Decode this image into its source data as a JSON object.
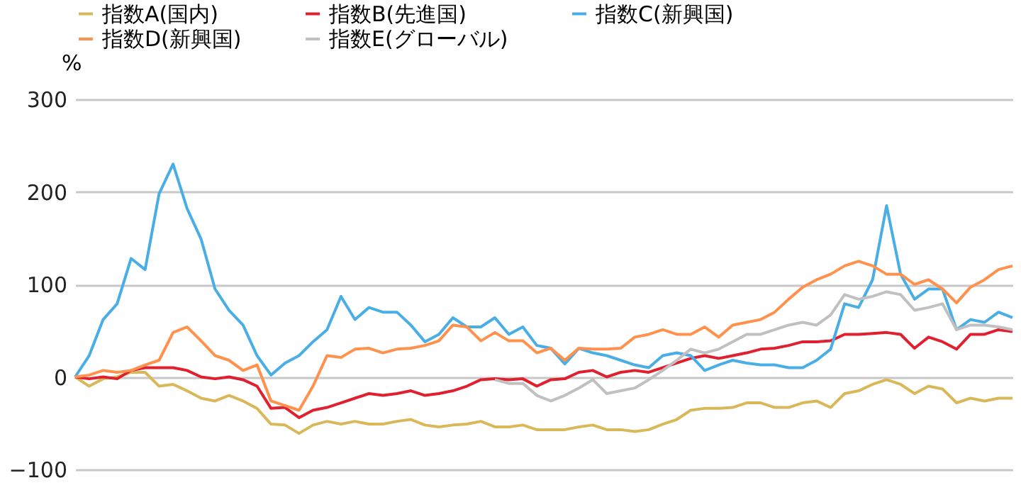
{
  "chart_data": {
    "type": "line",
    "ylabel": "%",
    "categories": [
      null,
      null,
      null,
      null,
      null,
      null,
      null,
      null,
      null,
      null,
      null,
      null,
      null,
      null,
      null,
      null,
      null,
      null,
      null,
      null,
      null,
      null,
      null,
      null,
      null,
      null,
      null,
      null,
      null,
      null,
      null,
      null,
      null,
      null,
      null,
      null,
      null,
      null,
      null,
      null,
      null,
      null,
      null,
      null,
      null,
      null,
      null,
      null,
      null,
      null,
      null,
      null,
      null,
      null,
      null,
      null,
      null,
      null,
      null,
      null,
      null,
      null,
      null,
      null,
      null,
      null,
      null,
      null
    ],
    "ylim": [
      -100,
      300
    ],
    "yticks": [
      -100,
      0,
      100,
      200,
      300
    ],
    "grid": "y",
    "legend": "top",
    "tick_labels": "y",
    "line_style": "solid",
    "series": [
      {
        "name": "指数A(国内)",
        "color": "#d9b85a",
        "values": [
          0,
          -10,
          -2,
          0,
          5,
          5,
          -10,
          -8,
          -15,
          -23,
          -26,
          -20,
          -26,
          -34,
          -51,
          -52,
          -61,
          -52,
          -48,
          -51,
          -48,
          -51,
          -51,
          -48,
          -46,
          -52,
          -54,
          -52,
          -51,
          -48,
          -54,
          -54,
          -52,
          -57,
          -57,
          -57,
          -54,
          -52,
          -57,
          -57,
          -59,
          -57,
          -51,
          -46,
          -36,
          -34,
          -34,
          -33,
          -28,
          -28,
          -33,
          -33,
          -28,
          -26,
          -33,
          -18,
          -15,
          -8,
          -3,
          -8,
          -18,
          -10,
          -13,
          -28,
          -23,
          -26,
          -23,
          -23
        ]
      },
      {
        "name": "指数B(先進国)",
        "color": "#e0202e",
        "values": [
          0,
          -2,
          0,
          -2,
          7,
          10,
          10,
          10,
          7,
          0,
          -2,
          0,
          -3,
          -10,
          -34,
          -33,
          -44,
          -36,
          -33,
          -28,
          -23,
          -18,
          -20,
          -18,
          -15,
          -20,
          -18,
          -15,
          -10,
          -3,
          -2,
          -3,
          -2,
          -10,
          -3,
          -2,
          5,
          7,
          0,
          5,
          7,
          5,
          10,
          15,
          20,
          23,
          20,
          23,
          26,
          30,
          31,
          34,
          38,
          38,
          39,
          46,
          46,
          47,
          48,
          46,
          31,
          43,
          38,
          30,
          46,
          46,
          51,
          49
        ]
      },
      {
        "name": "指数C(新興国)",
        "color": "#4aaee6",
        "values": [
          0,
          23,
          62,
          79,
          128,
          116,
          198,
          230,
          182,
          149,
          95,
          72,
          56,
          23,
          2,
          15,
          23,
          38,
          51,
          87,
          62,
          75,
          70,
          70,
          56,
          38,
          46,
          64,
          54,
          54,
          64,
          46,
          54,
          34,
          31,
          14,
          31,
          26,
          23,
          18,
          13,
          10,
          23,
          26,
          23,
          7,
          13,
          18,
          15,
          13,
          13,
          10,
          10,
          18,
          30,
          79,
          75,
          105,
          185,
          111,
          84,
          95,
          95,
          51,
          62,
          59,
          70,
          64
        ]
      },
      {
        "name": "指数D(新興国)",
        "color": "#ff914d",
        "values": [
          0,
          2,
          7,
          5,
          7,
          13,
          18,
          48,
          54,
          39,
          23,
          18,
          7,
          13,
          -26,
          -31,
          -36,
          -10,
          23,
          21,
          30,
          31,
          26,
          30,
          31,
          34,
          39,
          56,
          54,
          39,
          48,
          39,
          39,
          26,
          31,
          18,
          31,
          30,
          30,
          31,
          43,
          46,
          51,
          46,
          46,
          54,
          43,
          56,
          59,
          62,
          70,
          84,
          97,
          105,
          111,
          120,
          125,
          120,
          111,
          111,
          100,
          105,
          95,
          80,
          97,
          105,
          116,
          120
        ]
      },
      {
        "name": "指数E(グローバル)",
        "color": "#c0c0c0",
        "values": [
          null,
          null,
          null,
          null,
          null,
          null,
          null,
          null,
          null,
          null,
          null,
          null,
          null,
          null,
          null,
          null,
          null,
          null,
          null,
          null,
          null,
          null,
          null,
          null,
          null,
          null,
          null,
          null,
          null,
          null,
          -3,
          -7,
          -7,
          -20,
          -26,
          -20,
          -12,
          -3,
          -18,
          -15,
          -12,
          -3,
          7,
          18,
          30,
          26,
          30,
          38,
          46,
          46,
          51,
          56,
          59,
          56,
          67,
          89,
          84,
          87,
          92,
          89,
          72,
          75,
          79,
          51,
          56,
          56,
          54,
          51
        ]
      }
    ]
  }
}
